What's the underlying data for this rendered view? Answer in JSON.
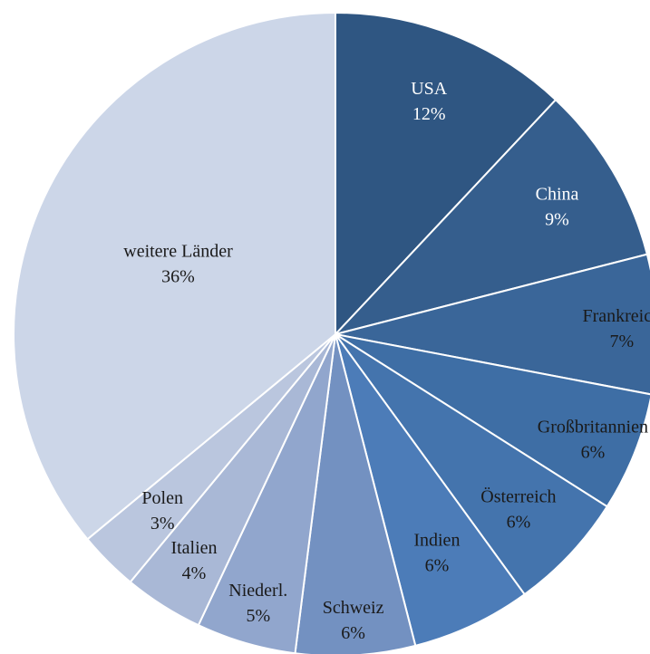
{
  "chart_data": {
    "type": "pie",
    "title": "",
    "start_angle_deg": 0,
    "direction": "clockwise",
    "legend": "none",
    "slices": [
      {
        "label": "USA",
        "value": 12,
        "value_label": "12%",
        "color": "#2f5682",
        "label_color": "#ffffff"
      },
      {
        "label": "China",
        "value": 9,
        "value_label": "9%",
        "color": "#355e8d",
        "label_color": "#ffffff"
      },
      {
        "label": "Frankreich",
        "value": 7,
        "value_label": "7%",
        "color": "#3a6699",
        "label_color": "#1a1a1a"
      },
      {
        "label": "Großbritannien",
        "value": 6,
        "value_label": "6%",
        "color": "#3e6ea5",
        "label_color": "#1a1a1a"
      },
      {
        "label": "Österreich",
        "value": 6,
        "value_label": "6%",
        "color": "#4474ad",
        "label_color": "#1a1a1a"
      },
      {
        "label": "Indien",
        "value": 6,
        "value_label": "6%",
        "color": "#4c7cb8",
        "label_color": "#1a1a1a"
      },
      {
        "label": "Schweiz",
        "value": 6,
        "value_label": "6%",
        "color": "#7391c1",
        "label_color": "#1a1a1a"
      },
      {
        "label": "Niederl.",
        "value": 5,
        "value_label": "5%",
        "color": "#91a6cd",
        "label_color": "#1a1a1a"
      },
      {
        "label": "Italien",
        "value": 4,
        "value_label": "4%",
        "color": "#a9b8d6",
        "label_color": "#1a1a1a"
      },
      {
        "label": "Polen",
        "value": 3,
        "value_label": "3%",
        "color": "#bac6de",
        "label_color": "#1a1a1a"
      },
      {
        "label": "weitere Länder",
        "value": 36,
        "value_label": "36%",
        "color": "#ccd6e8",
        "label_color": "#1a1a1a"
      }
    ]
  }
}
